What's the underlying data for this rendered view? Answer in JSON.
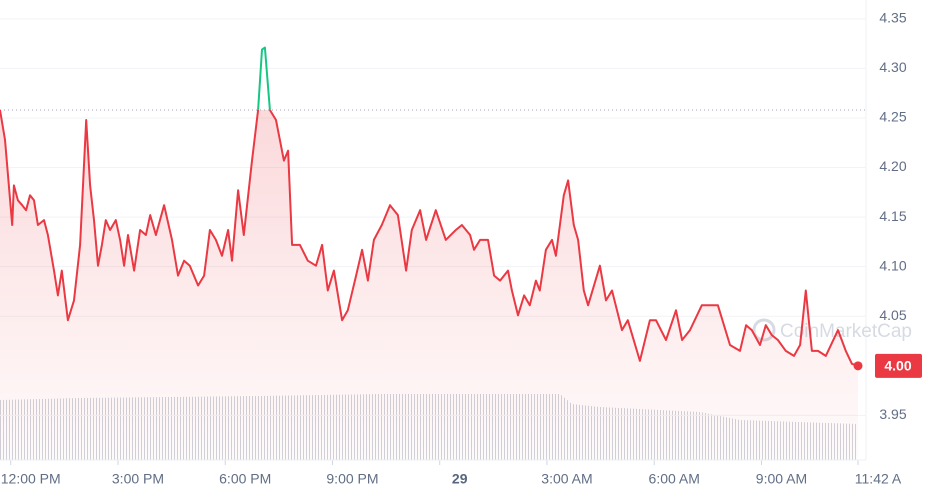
{
  "chart_data": {
    "type": "line",
    "x": [
      11.7,
      11.84,
      12.04,
      12.09,
      12.2,
      12.32,
      12.43,
      12.54,
      12.65,
      12.76,
      12.93,
      13.04,
      13.21,
      13.32,
      13.43,
      13.6,
      13.77,
      13.94,
      14.11,
      14.22,
      14.33,
      14.44,
      14.55,
      14.66,
      14.78,
      14.94,
      15.06,
      15.17,
      15.28,
      15.45,
      15.62,
      15.78,
      15.9,
      16.06,
      16.29,
      16.51,
      16.68,
      16.85,
      17.01,
      17.24,
      17.41,
      17.57,
      17.74,
      17.91,
      18.08,
      18.19,
      18.36,
      18.52,
      18.75,
      18.92,
      19.03,
      19.11,
      19.25,
      19.42,
      19.64,
      19.76,
      19.87,
      20.09,
      20.31,
      20.54,
      20.71,
      20.87,
      21.04,
      21.27,
      21.43,
      21.66,
      21.83,
      21.99,
      22.16,
      22.38,
      22.61,
      22.83,
      23.06,
      23.22,
      23.45,
      23.62,
      23.89,
      24.17,
      24.45,
      24.62,
      24.85,
      24.96,
      25.13,
      25.35,
      25.52,
      25.69,
      25.91,
      26.02,
      26.19,
      26.36,
      26.52,
      26.69,
      26.8,
      26.97,
      27.14,
      27.25,
      27.47,
      27.59,
      27.75,
      27.87,
      28.03,
      28.15,
      28.48,
      28.65,
      28.82,
      29.1,
      29.26,
      29.6,
      29.88,
      30.05,
      30.33,
      30.61,
      30.78,
      31.0,
      31.33,
      31.78,
      32.12,
      32.4,
      32.57,
      32.73,
      32.96,
      33.12,
      33.29,
      33.46,
      33.68,
      33.91,
      34.08,
      34.24,
      34.41,
      34.58,
      34.8,
      35.14,
      35.36,
      35.53,
      35.7
    ],
    "values": [
      4.258,
      4.228,
      4.142,
      4.182,
      4.167,
      4.162,
      4.157,
      4.172,
      4.167,
      4.142,
      4.147,
      4.132,
      4.096,
      4.071,
      4.096,
      4.046,
      4.066,
      4.122,
      4.248,
      4.182,
      4.147,
      4.101,
      4.122,
      4.147,
      4.137,
      4.147,
      4.127,
      4.101,
      4.132,
      4.096,
      4.137,
      4.132,
      4.152,
      4.132,
      4.162,
      4.127,
      4.091,
      4.106,
      4.101,
      4.081,
      4.091,
      4.137,
      4.127,
      4.111,
      4.137,
      4.106,
      4.177,
      4.132,
      4.207,
      4.258,
      4.319,
      4.321,
      4.258,
      4.248,
      4.207,
      4.217,
      4.122,
      4.122,
      4.106,
      4.101,
      4.122,
      4.076,
      4.096,
      4.046,
      4.056,
      4.091,
      4.117,
      4.086,
      4.127,
      4.142,
      4.162,
      4.152,
      4.096,
      4.137,
      4.157,
      4.127,
      4.157,
      4.127,
      4.137,
      4.142,
      4.132,
      4.117,
      4.127,
      4.127,
      4.091,
      4.086,
      4.096,
      4.076,
      4.051,
      4.071,
      4.061,
      4.086,
      4.076,
      4.117,
      4.127,
      4.111,
      4.172,
      4.187,
      4.142,
      4.127,
      4.076,
      4.061,
      4.101,
      4.066,
      4.076,
      4.036,
      4.046,
      4.005,
      4.046,
      4.046,
      4.026,
      4.056,
      4.026,
      4.036,
      4.061,
      4.061,
      4.021,
      4.015,
      4.041,
      4.036,
      4.021,
      4.041,
      4.031,
      4.026,
      4.015,
      4.01,
      4.021,
      4.076,
      4.015,
      4.015,
      4.01,
      4.036,
      4.015,
      4.002,
      4.0
    ],
    "baseline": 4.258,
    "color_down": "#ea3943",
    "color_up": "#16c784",
    "xlim": [
      11.7,
      35.7
    ],
    "xticks": [
      {
        "value": 12,
        "label": "12:00 PM"
      },
      {
        "value": 15,
        "label": "3:00 PM"
      },
      {
        "value": 18,
        "label": "6:00 PM"
      },
      {
        "value": 21,
        "label": "9:00 PM"
      },
      {
        "value": 24,
        "label": "29"
      },
      {
        "value": 27,
        "label": "3:00 AM"
      },
      {
        "value": 30,
        "label": "6:00 AM"
      },
      {
        "value": 33,
        "label": "9:00 AM"
      },
      {
        "value": 35.7,
        "label": "11:42 A"
      }
    ],
    "ylim": [
      3.905,
      4.369
    ],
    "yticks": [
      3.95,
      {
        "value": 4.05,
        "label": "4.05"
      },
      {
        "value": 4.1,
        "label": "4.10"
      },
      4.15,
      {
        "value": 4.2,
        "label": "4.20"
      },
      4.25,
      {
        "value": 4.3,
        "label": "4.30"
      },
      4.35
    ],
    "current_price": {
      "value": 4.0,
      "label": "4.00"
    },
    "grid": true,
    "watermark": "CoinMarketCap"
  }
}
